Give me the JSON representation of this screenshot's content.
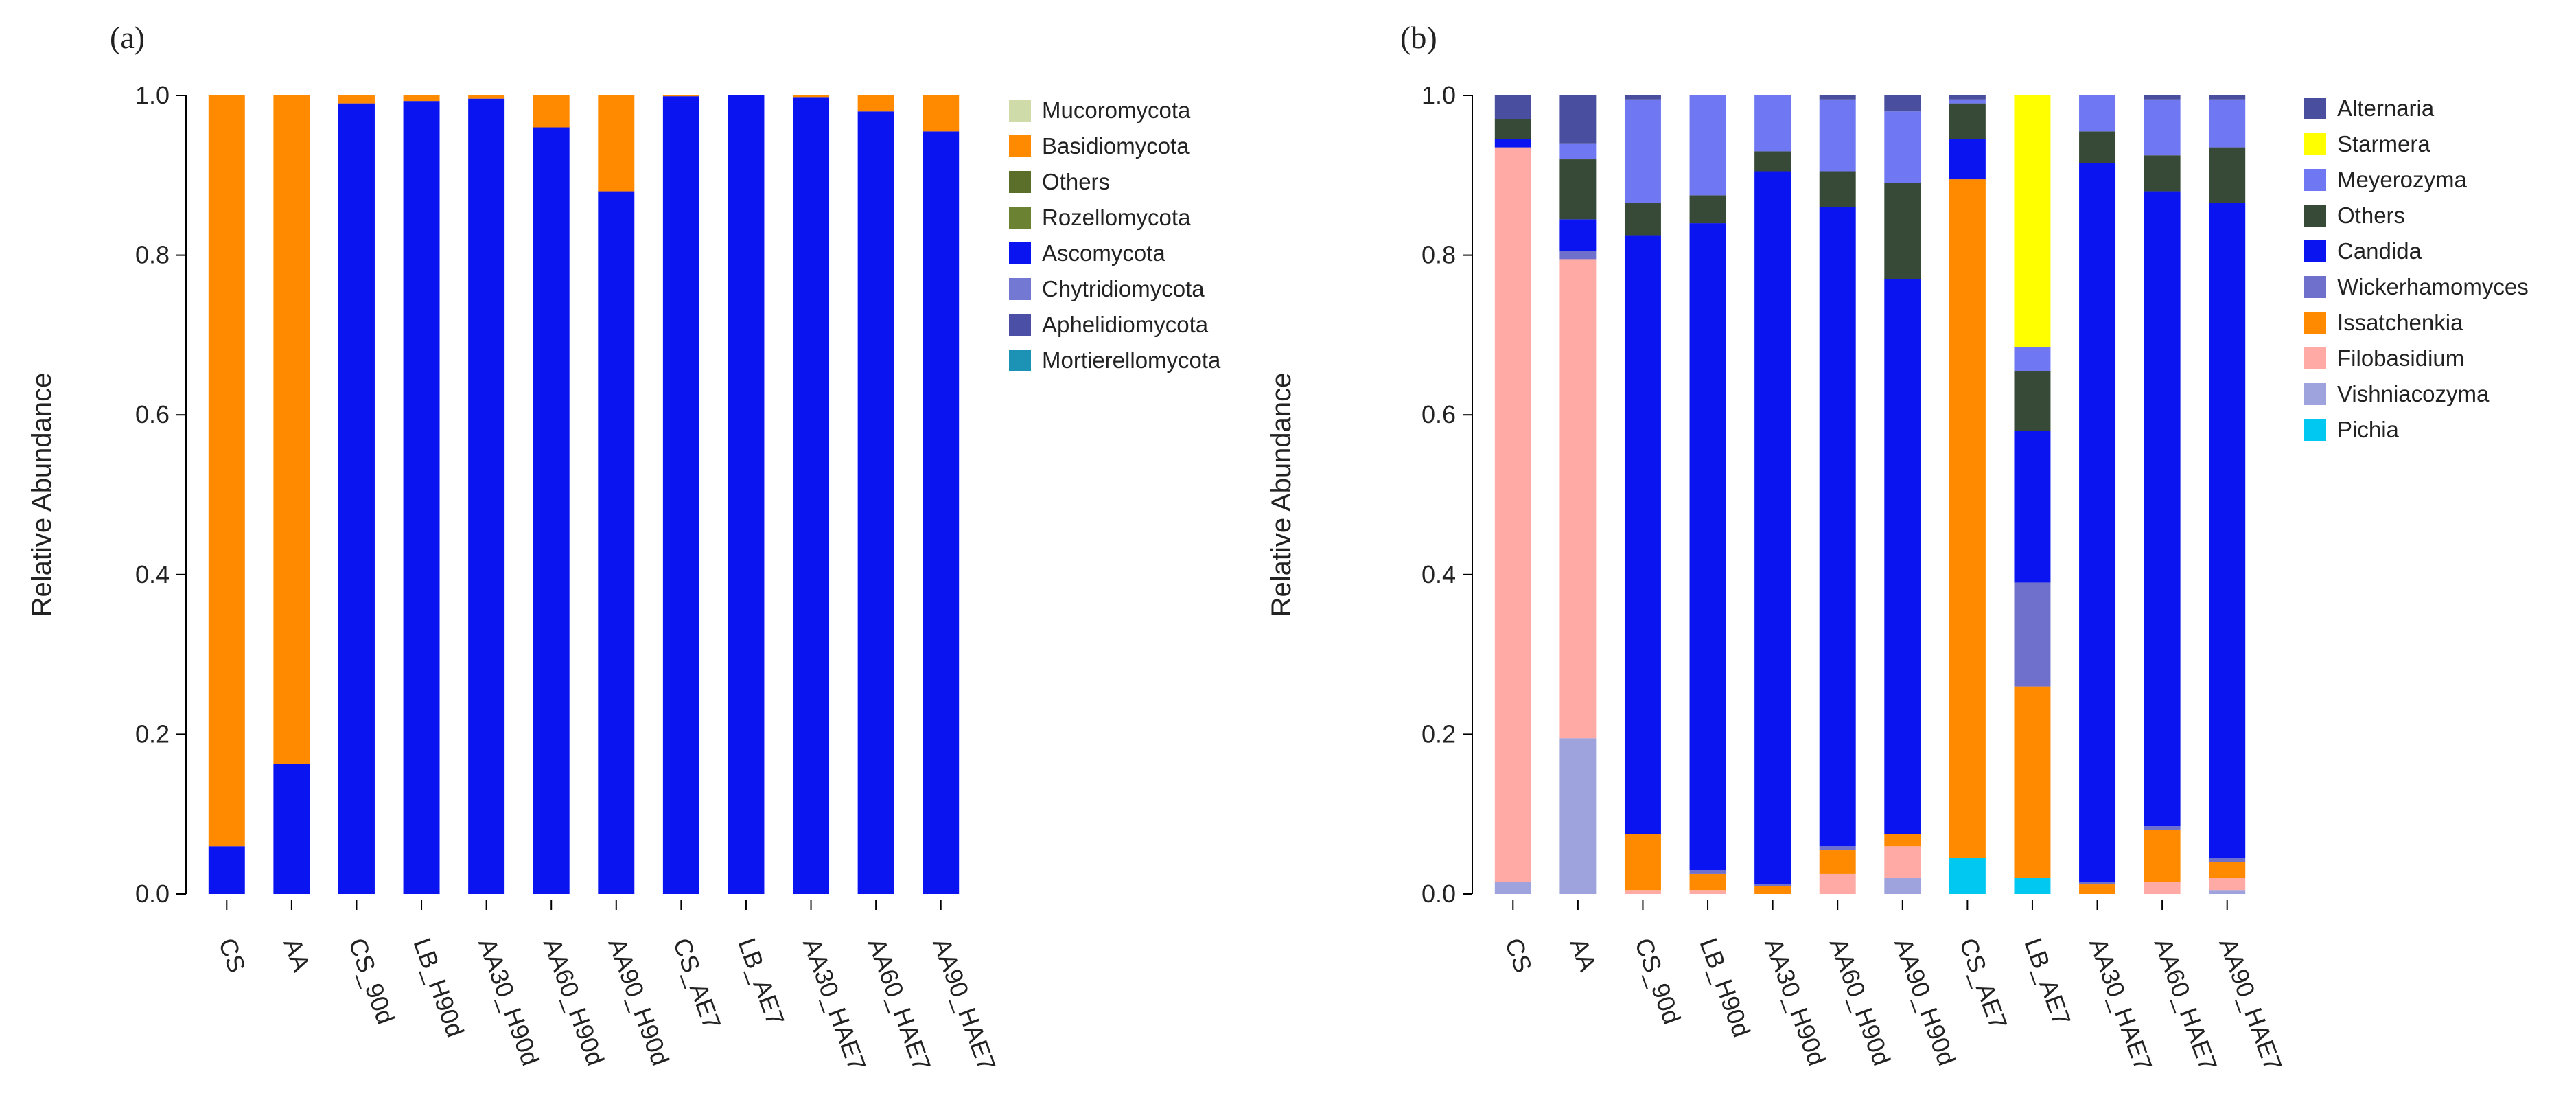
{
  "chart_data": [
    {
      "type": "bar",
      "stacked": true,
      "panel_label": "(a)",
      "ylabel": "Relative Abundance",
      "ylim": [
        0,
        1
      ],
      "yticks": [
        "0.0",
        "0.2",
        "0.4",
        "0.6",
        "0.8",
        "1.0"
      ],
      "legend_placement": "top-right-outside",
      "categories": [
        "CS",
        "AA",
        "CS_90d",
        "LB_H90d",
        "AA30_H90d",
        "AA60_H90d",
        "AA90_H90d",
        "CS_AE7",
        "LB_AE7",
        "AA30_HAE7",
        "AA60_HAE7",
        "AA90_HAE7"
      ],
      "legend": [
        {
          "name": "Mucoromycota",
          "color": "#cfdba8"
        },
        {
          "name": "Basidiomycota",
          "color": "#ff8a00"
        },
        {
          "name": "Others",
          "color": "#5b6e2a"
        },
        {
          "name": "Rozellomycota",
          "color": "#6b8232"
        },
        {
          "name": "Ascomycota",
          "color": "#0a14f0"
        },
        {
          "name": "Chytridiomycota",
          "color": "#7378d2"
        },
        {
          "name": "Aphelidiomycota",
          "color": "#4b4fa6"
        },
        {
          "name": "Mortierellomycota",
          "color": "#1c93b4"
        }
      ],
      "series": [
        {
          "name": "Ascomycota",
          "color": "#0a14f0",
          "values": [
            0.06,
            0.163,
            0.99,
            0.993,
            0.996,
            0.96,
            0.88,
            0.999,
            1.0,
            0.998,
            0.98,
            0.955
          ]
        },
        {
          "name": "Basidiomycota",
          "color": "#ff8a00",
          "values": [
            0.94,
            0.837,
            0.01,
            0.007,
            0.004,
            0.04,
            0.12,
            0.001,
            0.0,
            0.002,
            0.02,
            0.045
          ]
        }
      ]
    },
    {
      "type": "bar",
      "stacked": true,
      "panel_label": "(b)",
      "ylabel": "Relative Abundance",
      "ylim": [
        0,
        1
      ],
      "yticks": [
        "0.0",
        "0.2",
        "0.4",
        "0.6",
        "0.8",
        "1.0"
      ],
      "legend_placement": "top-right-outside",
      "categories": [
        "CS",
        "AA",
        "CS_90d",
        "LB_H90d",
        "AA30_H90d",
        "AA60_H90d",
        "AA90_H90d",
        "CS_AE7",
        "LB_AE7",
        "AA30_HAE7",
        "AA60_HAE7",
        "AA90_HAE7"
      ],
      "legend": [
        {
          "name": "Alternaria",
          "color": "#4a4e9e"
        },
        {
          "name": "Starmera",
          "color": "#ffff00"
        },
        {
          "name": "Meyerozyma",
          "color": "#6f78f2"
        },
        {
          "name": "Others",
          "color": "#374a37"
        },
        {
          "name": "Candida",
          "color": "#0a14f0"
        },
        {
          "name": "Wickerhamomyces",
          "color": "#6f6fcc"
        },
        {
          "name": "Issatchenkia",
          "color": "#ff8a00"
        },
        {
          "name": "Filobasidium",
          "color": "#ffaaa5"
        },
        {
          "name": "Vishniacozyma",
          "color": "#9ea3dd"
        },
        {
          "name": "Pichia",
          "color": "#00c8f0"
        }
      ],
      "series": [
        {
          "name": "Pichia",
          "color": "#00c8f0",
          "values": [
            0.0,
            0.0,
            0.0,
            0.0,
            0.0,
            0.0,
            0.0,
            0.045,
            0.02,
            0.0,
            0.0,
            0.0
          ]
        },
        {
          "name": "Vishniacozyma",
          "color": "#9ea3dd",
          "values": [
            0.015,
            0.195,
            0.0,
            0.0,
            0.0,
            0.0,
            0.02,
            0.0,
            0.0,
            0.0,
            0.0,
            0.005
          ]
        },
        {
          "name": "Filobasidium",
          "color": "#ffaaa5",
          "values": [
            0.92,
            0.6,
            0.005,
            0.005,
            0.0,
            0.025,
            0.04,
            0.0,
            0.0,
            0.0,
            0.015,
            0.015
          ]
        },
        {
          "name": "Issatchenkia",
          "color": "#ff8a00",
          "values": [
            0.0,
            0.0,
            0.07,
            0.02,
            0.01,
            0.03,
            0.015,
            0.85,
            0.24,
            0.012,
            0.065,
            0.02
          ]
        },
        {
          "name": "Wickerhamomyces",
          "color": "#6f6fcc",
          "values": [
            0.0,
            0.01,
            0.0,
            0.005,
            0.002,
            0.005,
            0.0,
            0.0,
            0.13,
            0.003,
            0.005,
            0.005
          ]
        },
        {
          "name": "Candida",
          "color": "#0a14f0",
          "values": [
            0.01,
            0.04,
            0.75,
            0.81,
            0.893,
            0.8,
            0.695,
            0.05,
            0.19,
            0.9,
            0.795,
            0.82
          ]
        },
        {
          "name": "Others",
          "color": "#374a37",
          "values": [
            0.025,
            0.075,
            0.04,
            0.035,
            0.025,
            0.045,
            0.12,
            0.045,
            0.075,
            0.04,
            0.045,
            0.07
          ]
        },
        {
          "name": "Meyerozyma",
          "color": "#6f78f2",
          "values": [
            0.0,
            0.02,
            0.13,
            0.125,
            0.07,
            0.09,
            0.09,
            0.005,
            0.03,
            0.045,
            0.07,
            0.06
          ]
        },
        {
          "name": "Starmera",
          "color": "#ffff00",
          "values": [
            0.0,
            0.0,
            0.0,
            0.0,
            0.0,
            0.0,
            0.0,
            0.0,
            0.315,
            0.0,
            0.0,
            0.0
          ]
        },
        {
          "name": "Alternaria",
          "color": "#4a4e9e",
          "values": [
            0.03,
            0.06,
            0.005,
            0.0,
            0.0,
            0.005,
            0.02,
            0.005,
            0.0,
            0.0,
            0.005,
            0.005
          ]
        }
      ]
    }
  ]
}
